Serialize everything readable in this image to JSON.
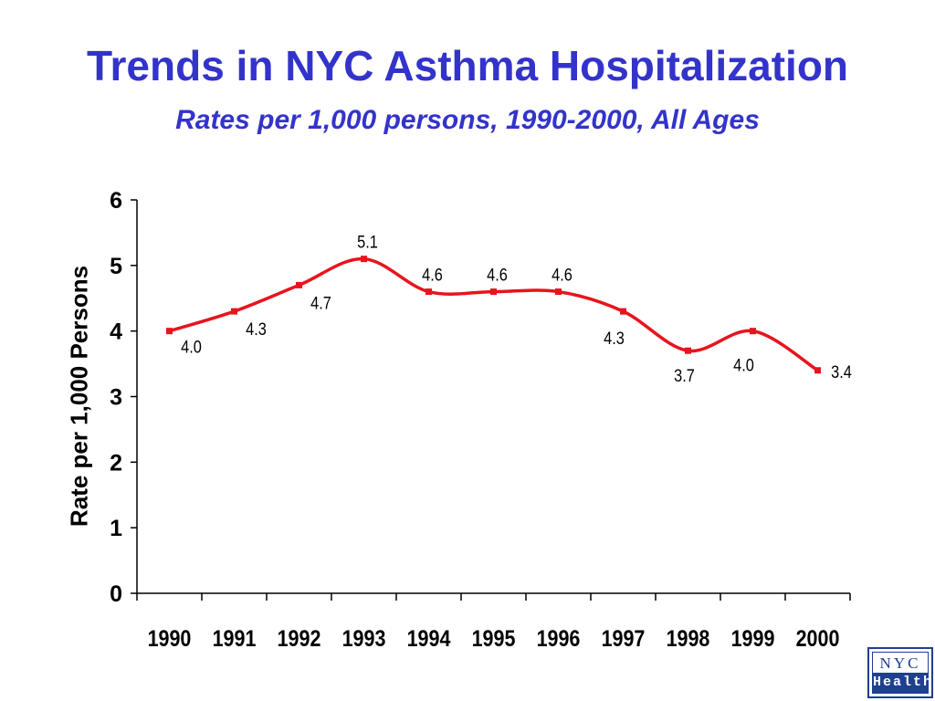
{
  "slide": {
    "title": "Trends in NYC Asthma Hospitalization",
    "subtitle": "Rates per 1,000 persons, 1990-2000, All Ages"
  },
  "logo": {
    "line1": "NYC",
    "line2": "Health",
    "color": "#1f3f8f"
  },
  "chart_data": {
    "type": "line",
    "title": "",
    "xlabel": "",
    "ylabel": "Rate per 1,000 Persons",
    "categories": [
      "1990",
      "1991",
      "1992",
      "1993",
      "1994",
      "1995",
      "1996",
      "1997",
      "1998",
      "1999",
      "2000"
    ],
    "series": [
      {
        "values": [
          4.0,
          4.3,
          4.7,
          5.1,
          4.6,
          4.6,
          4.6,
          4.3,
          3.7,
          4.0,
          3.4
        ],
        "labels": [
          "4.0",
          "4.3",
          "4.7",
          "5.1",
          "4.6",
          "4.6",
          "4.6",
          "4.3",
          "3.7",
          "4.0",
          "3.4"
        ],
        "color": "#e8141c"
      }
    ],
    "yticks": [
      "0",
      "1",
      "2",
      "3",
      "4",
      "5",
      "6"
    ],
    "ylim": [
      0,
      6
    ],
    "grid": false,
    "legend": "none",
    "smooth": true
  }
}
